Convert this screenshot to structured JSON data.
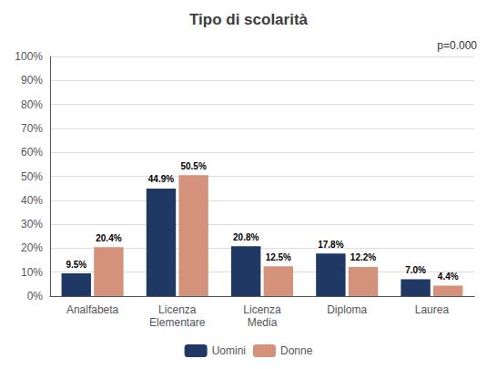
{
  "chart_data": {
    "type": "bar",
    "title": "Tipo di scolarità",
    "annotation": "p=0.000",
    "categories": [
      "Analfabeta",
      "Licenza\nElementare",
      "Licenza\nMedia",
      "Diploma",
      "Laurea"
    ],
    "series": [
      {
        "name": "Uomini",
        "color": "#1F3864",
        "values": [
          9.5,
          44.9,
          20.8,
          17.8,
          7.0
        ],
        "value_labels": [
          "9.5%",
          "44.9%",
          "20.8%",
          "17.8%",
          "7.0%"
        ]
      },
      {
        "name": "Donne",
        "color": "#D4927A",
        "values": [
          20.4,
          50.5,
          12.5,
          12.2,
          4.4
        ],
        "value_labels": [
          "20.4%",
          "50.5%",
          "12.5%",
          "12.2%",
          "4.4%"
        ]
      }
    ],
    "ylim": [
      0,
      100
    ],
    "yticks": [
      {
        "value": 0,
        "label": "0%"
      },
      {
        "value": 10,
        "label": "10%"
      },
      {
        "value": 20,
        "label": "20%"
      },
      {
        "value": 30,
        "label": "30%"
      },
      {
        "value": 40,
        "label": "40%"
      },
      {
        "value": 50,
        "label": "50%"
      },
      {
        "value": 60,
        "label": "60%"
      },
      {
        "value": 70,
        "label": "70%"
      },
      {
        "value": 80,
        "label": "80%"
      },
      {
        "value": 90,
        "label": "90%"
      },
      {
        "value": 100,
        "label": "100%"
      }
    ],
    "grid": true,
    "legend": "bottom",
    "data_labels": true
  }
}
